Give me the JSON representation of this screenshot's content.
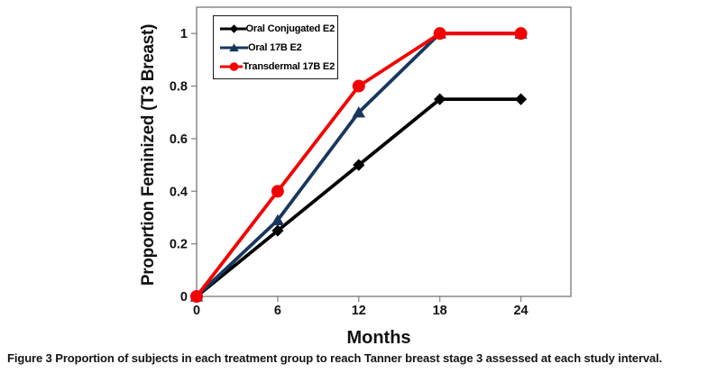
{
  "figure": {
    "caption_prefix": "Figure 3",
    "caption_text": " Proportion of subjects in each treatment group to reach Tanner breast stage 3 assessed at each study interval."
  },
  "chart_data": {
    "type": "line",
    "title": "",
    "xlabel": "Months",
    "ylabel": "Proportion Feminized (T3 Breast)",
    "x": [
      0,
      6,
      12,
      18,
      24
    ],
    "xticks": [
      0,
      6,
      12,
      18,
      24
    ],
    "yticks": [
      0,
      0.2,
      0.4,
      0.6,
      0.8,
      1
    ],
    "ytick_labels": [
      "0",
      "0.2",
      "0.4",
      "0.6",
      "0.8",
      "1"
    ],
    "xlim": [
      0,
      27.7
    ],
    "ylim": [
      0,
      1.1
    ],
    "grid": false,
    "legend_position": "top-left-inside",
    "axis_color": "#8a8a8a",
    "series": [
      {
        "name": "Oral Conjugated E2",
        "color": "#000000",
        "marker": "diamond",
        "values": [
          0,
          0.25,
          0.5,
          0.75,
          0.75
        ]
      },
      {
        "name": "Oral 17B E2",
        "color": "#17375E",
        "marker": "triangle",
        "values": [
          0,
          0.29,
          0.7,
          1,
          1
        ]
      },
      {
        "name": "Transdermal 17B E2",
        "color": "#F40000",
        "marker": "circle",
        "values": [
          0,
          0.4,
          0.8,
          1,
          1
        ]
      }
    ]
  }
}
